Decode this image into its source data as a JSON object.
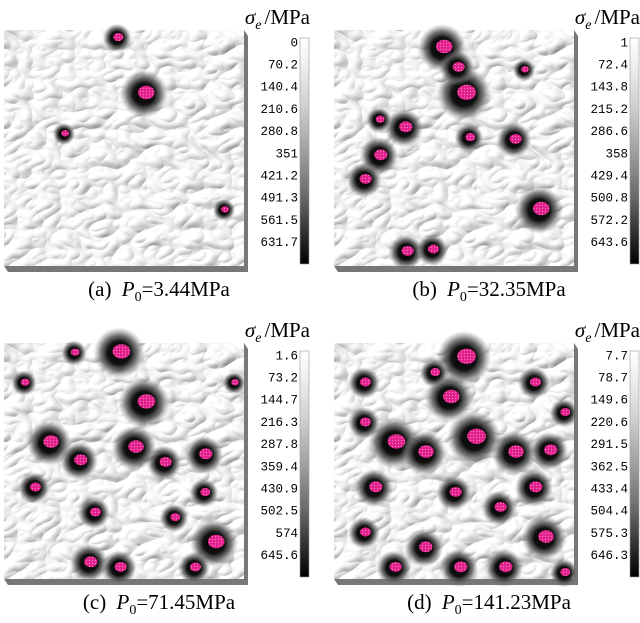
{
  "panels": [
    {
      "unit": {
        "symbol": "σ",
        "subscript": "e",
        "text": "/MPa"
      },
      "ticks": [
        "0",
        "70.2",
        "140.4",
        "210.6",
        "280.8",
        "351",
        "421.2",
        "491.3",
        "561.5",
        "631.7"
      ],
      "caption": {
        "prefix": "(a) ",
        "symbol": "P",
        "subscript": "0",
        "text": "=3.44MPa"
      }
    },
    {
      "unit": {
        "symbol": "σ",
        "subscript": "e",
        "text": "/MPa"
      },
      "ticks": [
        "1",
        "72.4",
        "143.8",
        "215.2",
        "286.6",
        "358",
        "429.4",
        "500.8",
        "572.2",
        "643.6"
      ],
      "caption": {
        "prefix": "(b) ",
        "symbol": "P",
        "subscript": "0",
        "text": "=32.35MPa"
      }
    },
    {
      "unit": {
        "symbol": "σ",
        "subscript": "e",
        "text": "/MPa"
      },
      "ticks": [
        "1.6",
        "73.2",
        "144.7",
        "216.3",
        "287.8",
        "359.4",
        "430.9",
        "502.5",
        "574",
        "645.6"
      ],
      "caption": {
        "prefix": "(c) ",
        "symbol": "P",
        "subscript": "0",
        "text": "=71.45MPa"
      }
    },
    {
      "unit": {
        "symbol": "σ",
        "subscript": "e",
        "text": "/MPa"
      },
      "ticks": [
        "7.7",
        "78.7",
        "149.6",
        "220.6",
        "291.5",
        "362.5",
        "433.4",
        "504.4",
        "575.3",
        "646.3"
      ],
      "caption": {
        "prefix": "(d) ",
        "symbol": "P",
        "subscript": "0",
        "text": "=141.23MPa"
      }
    }
  ]
}
